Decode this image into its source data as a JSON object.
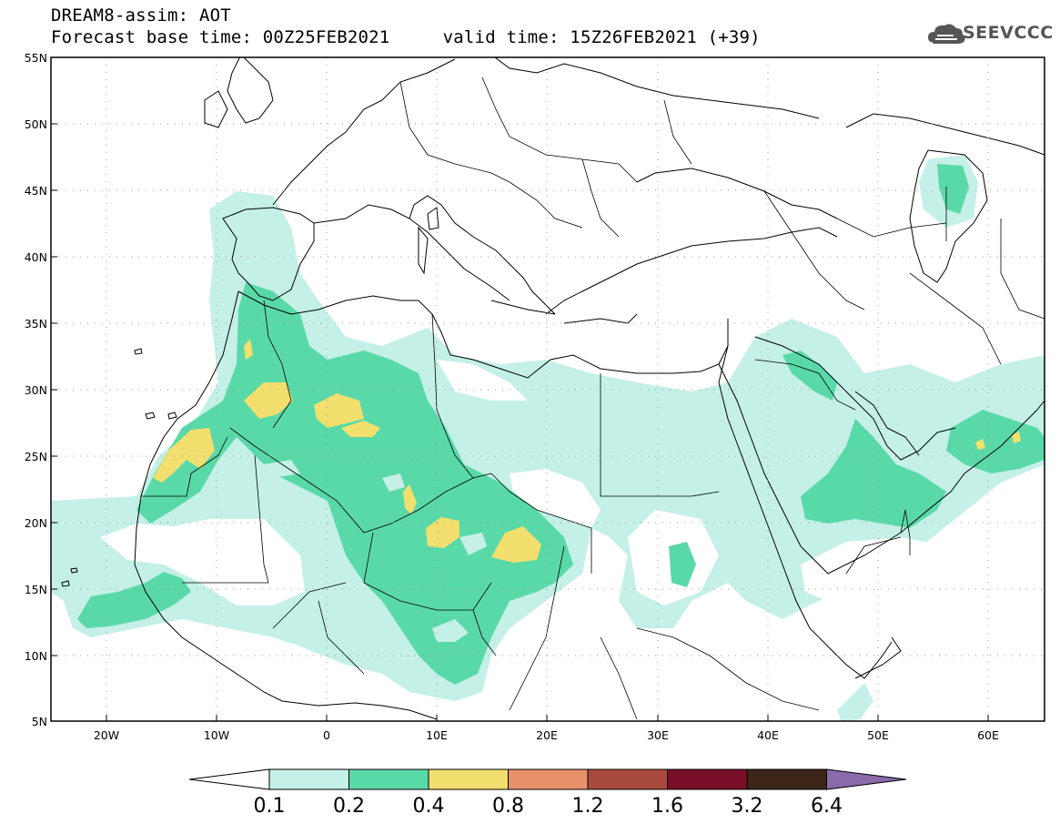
{
  "title": {
    "line1": "DREAM8-assim: AOT",
    "line2": "Forecast base time: 00Z25FEB2021     valid time: 15Z26FEB2021 (+39)"
  },
  "logo": {
    "text": "SEEVCCC",
    "icon": "cloud-icon"
  },
  "map": {
    "projection": "lat-lon",
    "lon_range": [
      -25,
      65
    ],
    "lat_range": [
      5,
      55
    ],
    "lat_labels": [
      "55N",
      "50N",
      "45N",
      "40N",
      "35N",
      "30N",
      "25N",
      "20N",
      "15N",
      "10N",
      "5N"
    ],
    "lon_labels": [
      "20W",
      "10W",
      "0",
      "10E",
      "20E",
      "30E",
      "40E",
      "50E",
      "60E"
    ],
    "grid": "dotted"
  },
  "colorbar": {
    "labels": [
      "0.1",
      "0.2",
      "0.4",
      "0.8",
      "1.2",
      "1.6",
      "3.2",
      "6.4"
    ],
    "colors": [
      "#ffffff",
      "#c4f0e8",
      "#5ad9a8",
      "#f2df6e",
      "#e8906a",
      "#a84b3e",
      "#7a0f2a",
      "#3d2518",
      "#8a6aa8"
    ]
  }
}
